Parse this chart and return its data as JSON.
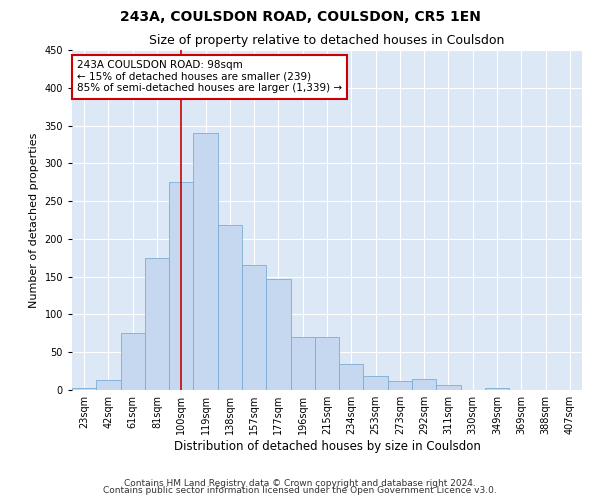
{
  "title": "243A, COULSDON ROAD, COULSDON, CR5 1EN",
  "subtitle": "Size of property relative to detached houses in Coulsdon",
  "xlabel": "Distribution of detached houses by size in Coulsdon",
  "ylabel": "Number of detached properties",
  "bar_labels": [
    "23sqm",
    "42sqm",
    "61sqm",
    "81sqm",
    "100sqm",
    "119sqm",
    "138sqm",
    "157sqm",
    "177sqm",
    "196sqm",
    "215sqm",
    "234sqm",
    "253sqm",
    "273sqm",
    "292sqm",
    "311sqm",
    "330sqm",
    "349sqm",
    "369sqm",
    "388sqm",
    "407sqm"
  ],
  "bar_values": [
    3,
    13,
    75,
    175,
    275,
    340,
    218,
    165,
    147,
    70,
    70,
    35,
    18,
    12,
    15,
    7,
    0,
    3,
    0,
    0,
    0
  ],
  "bar_color": "#c5d8f0",
  "bar_edge_color": "#7aadd4",
  "vline_x": 4,
  "vline_color": "#cc0000",
  "annotation_text": "243A COULSDON ROAD: 98sqm\n← 15% of detached houses are smaller (239)\n85% of semi-detached houses are larger (1,339) →",
  "annotation_box_color": "#ffffff",
  "annotation_box_edge": "#cc0000",
  "ylim": [
    0,
    450
  ],
  "yticks": [
    0,
    50,
    100,
    150,
    200,
    250,
    300,
    350,
    400,
    450
  ],
  "background_color": "#dce8f5",
  "footer_line1": "Contains HM Land Registry data © Crown copyright and database right 2024.",
  "footer_line2": "Contains public sector information licensed under the Open Government Licence v3.0.",
  "title_fontsize": 10,
  "subtitle_fontsize": 9,
  "xlabel_fontsize": 8.5,
  "ylabel_fontsize": 8,
  "tick_fontsize": 7,
  "footer_fontsize": 6.5,
  "annotation_fontsize": 7.5
}
